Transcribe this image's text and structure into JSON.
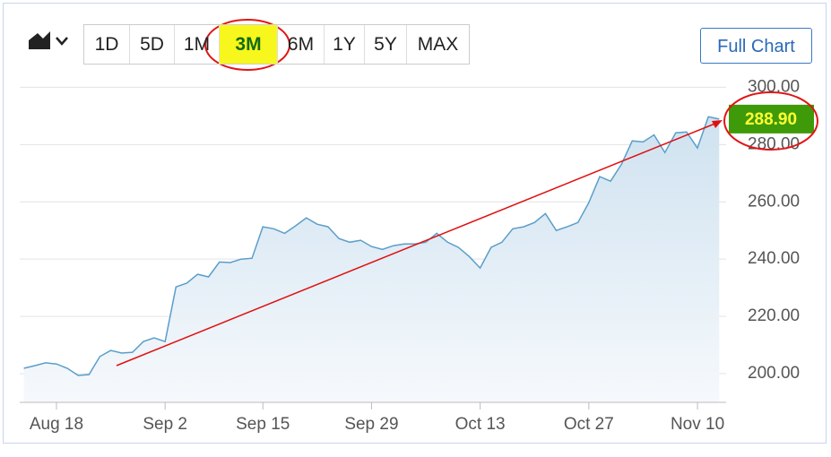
{
  "ranges": [
    "1D",
    "5D",
    "1M",
    "3M",
    "6M",
    "1Y",
    "5Y",
    "MAX"
  ],
  "selected_range": 3,
  "full_chart": "Full Chart",
  "chart_data": {
    "type": "area",
    "color": "#5a9ec9",
    "grid": true,
    "categories": [
      null,
      null,
      null,
      "Aug 18",
      null,
      null,
      null,
      null,
      null,
      null,
      null,
      null,
      null,
      "Sep 2",
      null,
      null,
      null,
      null,
      null,
      null,
      null,
      null,
      "Sep 15",
      null,
      null,
      null,
      null,
      null,
      null,
      null,
      null,
      null,
      "Sep 29",
      null,
      null,
      null,
      null,
      null,
      null,
      null,
      null,
      null,
      "Oct 13",
      null,
      null,
      null,
      null,
      null,
      null,
      null,
      null,
      null,
      "Oct 27",
      null,
      null,
      null,
      null,
      null,
      null,
      null,
      null,
      null,
      "Nov 10",
      null,
      null
    ],
    "values": [
      201.9,
      202.8,
      203.8,
      203.4,
      201.9,
      199.4,
      199.7,
      206,
      208.1,
      207.2,
      207.5,
      211.2,
      212.5,
      211.2,
      230.3,
      231.6,
      234.7,
      233.8,
      239,
      238.8,
      240,
      240.3,
      251.3,
      250.6,
      249,
      251.6,
      254.4,
      252.2,
      251.3,
      247.2,
      245.9,
      246.6,
      244.4,
      243.4,
      244.7,
      245.3,
      245.3,
      245.9,
      249,
      245.9,
      244.1,
      240.9,
      236.9,
      244.1,
      245.9,
      250.6,
      251.3,
      252.8,
      255.9,
      250,
      251.3,
      252.8,
      259.7,
      268.8,
      267.2,
      273.1,
      281.3,
      280.9,
      283.4,
      277.2,
      284.1,
      284.4,
      278.8,
      289.7,
      288.9
    ],
    "ylim": [
      190,
      302
    ],
    "yticks": [
      {
        "value": 200,
        "label": "200.00"
      },
      {
        "value": 220,
        "label": "220.00"
      },
      {
        "value": 240,
        "label": "240.00"
      },
      {
        "value": 260,
        "label": "260.00"
      },
      {
        "value": 280,
        "label": "280.00"
      },
      {
        "value": 300,
        "label": "300.00"
      }
    ],
    "last_price": {
      "value": 288.9,
      "label": "288.90"
    }
  }
}
